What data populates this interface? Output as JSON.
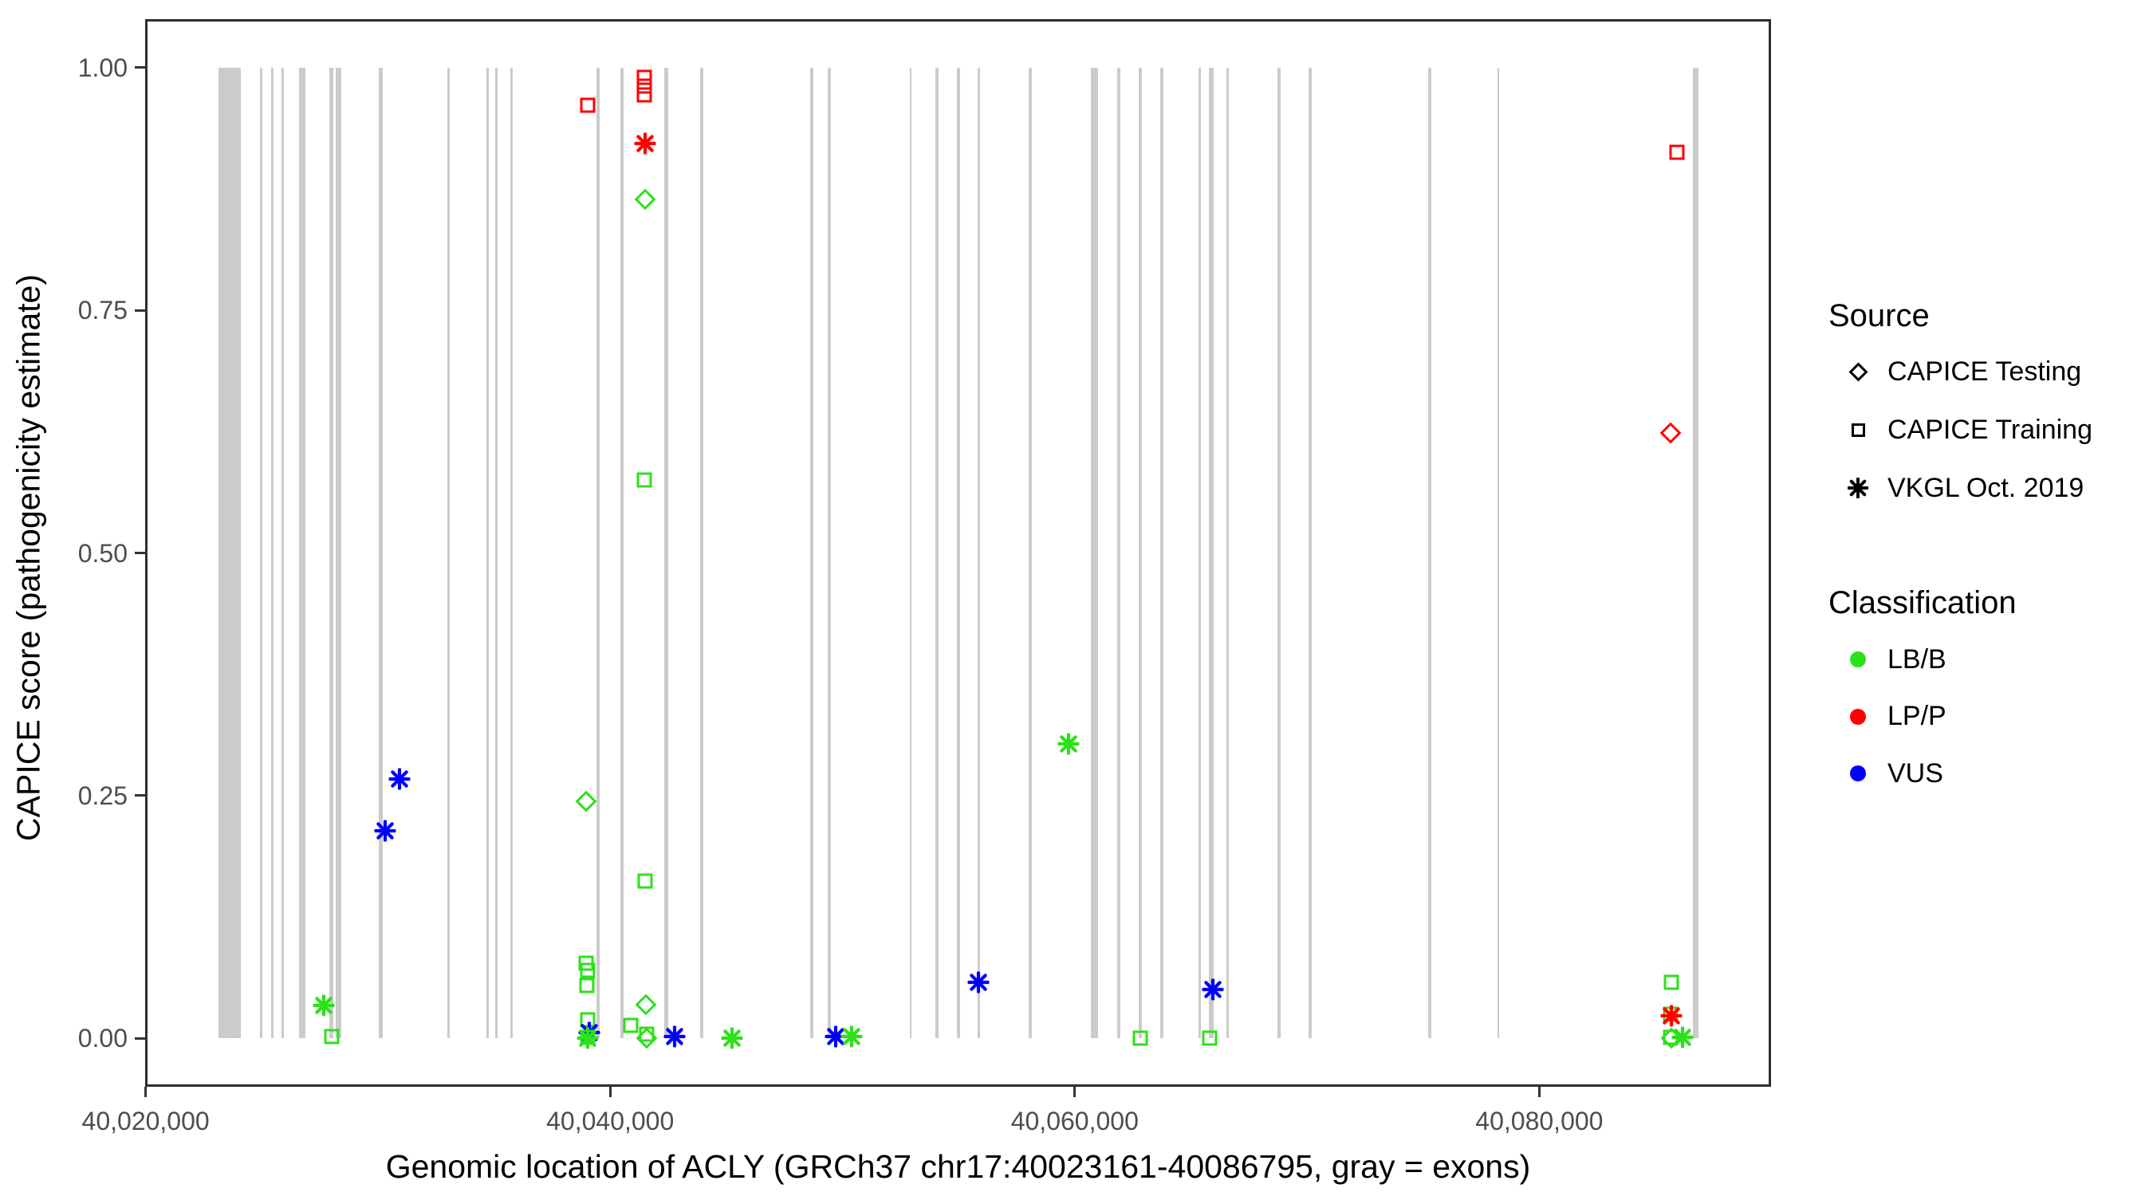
{
  "figure": {
    "x_axis": {
      "title": "Genomic location of ACLY (GRCh37 chr17:40023161-40086795, gray = exons)",
      "ticks": [
        {
          "value": 40020000,
          "label": "40,020,000"
        },
        {
          "value": 40040000,
          "label": "40,040,000"
        },
        {
          "value": 40060000,
          "label": "40,060,000"
        },
        {
          "value": 40080000,
          "label": "40,080,000"
        }
      ]
    },
    "y_axis": {
      "title": "CAPICE score (pathogenicity estimate)",
      "ticks": [
        {
          "value": 0.0,
          "label": "0.00"
        },
        {
          "value": 0.25,
          "label": "0.25"
        },
        {
          "value": 0.5,
          "label": "0.50"
        },
        {
          "value": 0.75,
          "label": "0.75"
        },
        {
          "value": 1.0,
          "label": "1.00"
        }
      ]
    },
    "legend": {
      "source": {
        "title": "Source",
        "items": [
          {
            "label": "CAPICE Testing",
            "marker": "diamond"
          },
          {
            "label": "CAPICE Training",
            "marker": "square"
          },
          {
            "label": "VKGL Oct. 2019",
            "marker": "asterisk"
          }
        ]
      },
      "classification": {
        "title": "Classification",
        "items": [
          {
            "label": "LB/B",
            "color": "#2CE118"
          },
          {
            "label": "LP/P",
            "color": "#FF0000"
          },
          {
            "label": "VUS",
            "color": "#0000FF"
          }
        ]
      }
    }
  },
  "chart_data": {
    "type": "scatter",
    "title": "",
    "xlabel": "Genomic location of ACLY (GRCh37 chr17:40023161-40086795, gray = exons)",
    "ylabel": "CAPICE score (pathogenicity estimate)",
    "x_range": [
      40019979,
      40089977
    ],
    "y_range": [
      -0.05,
      1.05
    ],
    "grid": false,
    "legend_position": "right",
    "exon_color": "#cbcbcb",
    "class_colors": {
      "LB/B": "#2CE118",
      "LP/P": "#FF0000",
      "VUS": "#0000FF"
    },
    "source_markers": {
      "CAPICE Testing": "diamond",
      "CAPICE Training": "square",
      "VKGL Oct. 2019": "asterisk"
    },
    "exons": [
      [
        40023140,
        40024100
      ],
      [
        40024920,
        40025030
      ],
      [
        40025400,
        40025510
      ],
      [
        40025850,
        40025950
      ],
      [
        40026610,
        40026880
      ],
      [
        40027910,
        40028080
      ],
      [
        40028190,
        40028430
      ],
      [
        40030040,
        40030210
      ],
      [
        40032990,
        40033090
      ],
      [
        40034670,
        40034780
      ],
      [
        40035050,
        40035150
      ],
      [
        40035700,
        40035810
      ],
      [
        40039410,
        40039550
      ],
      [
        40040440,
        40040580
      ],
      [
        40042330,
        40042500
      ],
      [
        40043870,
        40044010
      ],
      [
        40048610,
        40048750
      ],
      [
        40049370,
        40049500
      ],
      [
        40052900,
        40052970
      ],
      [
        40054000,
        40054140
      ],
      [
        40054930,
        40055060
      ],
      [
        40055820,
        40055920
      ],
      [
        40058020,
        40058150
      ],
      [
        40060690,
        40061000
      ],
      [
        40061830,
        40061960
      ],
      [
        40062750,
        40062890
      ],
      [
        40063680,
        40063820
      ],
      [
        40065330,
        40065430
      ],
      [
        40065780,
        40065980
      ],
      [
        40066530,
        40066600
      ],
      [
        40068730,
        40068870
      ],
      [
        40070070,
        40070200
      ],
      [
        40075220,
        40075350
      ],
      [
        40078200,
        40078270
      ],
      [
        40086620,
        40086860
      ]
    ],
    "points": [
      {
        "x": 40027670,
        "y": 0.034,
        "source": "VKGL Oct. 2019",
        "classification": "LB/B"
      },
      {
        "x": 40028000,
        "y": 0.002,
        "source": "CAPICE Training",
        "classification": "LB/B"
      },
      {
        "x": 40030310,
        "y": 0.214,
        "source": "VKGL Oct. 2019",
        "classification": "VUS"
      },
      {
        "x": 40030920,
        "y": 0.267,
        "source": "VKGL Oct. 2019",
        "classification": "VUS"
      },
      {
        "x": 40038960,
        "y": 0.244,
        "source": "CAPICE Testing",
        "classification": "LB/B"
      },
      {
        "x": 40039020,
        "y": 0.961,
        "source": "CAPICE Training",
        "classification": "LP/P"
      },
      {
        "x": 40038970,
        "y": 0.077,
        "source": "CAPICE Training",
        "classification": "LB/B"
      },
      {
        "x": 40039020,
        "y": 0.07,
        "source": "CAPICE Training",
        "classification": "LB/B"
      },
      {
        "x": 40039000,
        "y": 0.054,
        "source": "CAPICE Training",
        "classification": "LB/B"
      },
      {
        "x": 40039020,
        "y": 0.019,
        "source": "CAPICE Training",
        "classification": "LB/B"
      },
      {
        "x": 40039110,
        "y": 0.006,
        "source": "VKGL Oct. 2019",
        "classification": "VUS"
      },
      {
        "x": 40039020,
        "y": 0.001,
        "source": "CAPICE Training",
        "classification": "LB/B"
      },
      {
        "x": 40039020,
        "y": 0.0,
        "source": "VKGL Oct. 2019",
        "classification": "LB/B"
      },
      {
        "x": 40041480,
        "y": 0.99,
        "source": "CAPICE Training",
        "classification": "LP/P"
      },
      {
        "x": 40041480,
        "y": 0.981,
        "source": "CAPICE Training",
        "classification": "LP/P"
      },
      {
        "x": 40041460,
        "y": 0.972,
        "source": "CAPICE Training",
        "classification": "LP/P"
      },
      {
        "x": 40041500,
        "y": 0.922,
        "source": "VKGL Oct. 2019",
        "classification": "LP/P"
      },
      {
        "x": 40041500,
        "y": 0.864,
        "source": "CAPICE Testing",
        "classification": "LB/B"
      },
      {
        "x": 40041460,
        "y": 0.575,
        "source": "CAPICE Training",
        "classification": "LB/B"
      },
      {
        "x": 40041520,
        "y": 0.162,
        "source": "CAPICE Training",
        "classification": "LB/B"
      },
      {
        "x": 40040890,
        "y": 0.013,
        "source": "CAPICE Training",
        "classification": "LB/B"
      },
      {
        "x": 40041540,
        "y": 0.035,
        "source": "CAPICE Testing",
        "classification": "LB/B"
      },
      {
        "x": 40041570,
        "y": 0.004,
        "source": "CAPICE Training",
        "classification": "LB/B"
      },
      {
        "x": 40041560,
        "y": 0.0,
        "source": "CAPICE Testing",
        "classification": "LB/B"
      },
      {
        "x": 40042770,
        "y": 0.002,
        "source": "VKGL Oct. 2019",
        "classification": "VUS"
      },
      {
        "x": 40045260,
        "y": 0.0,
        "source": "VKGL Oct. 2019",
        "classification": "LB/B"
      },
      {
        "x": 40049700,
        "y": 0.002,
        "source": "VKGL Oct. 2019",
        "classification": "VUS"
      },
      {
        "x": 40050390,
        "y": 0.002,
        "source": "VKGL Oct. 2019",
        "classification": "LB/B"
      },
      {
        "x": 40055840,
        "y": 0.058,
        "source": "VKGL Oct. 2019",
        "classification": "VUS"
      },
      {
        "x": 40059730,
        "y": 0.303,
        "source": "VKGL Oct. 2019",
        "classification": "LB/B"
      },
      {
        "x": 40062830,
        "y": 0.0,
        "source": "CAPICE Training",
        "classification": "LB/B"
      },
      {
        "x": 40065800,
        "y": 0.0,
        "source": "CAPICE Training",
        "classification": "LB/B"
      },
      {
        "x": 40065940,
        "y": 0.05,
        "source": "VKGL Oct. 2019",
        "classification": "VUS"
      },
      {
        "x": 40085930,
        "y": 0.913,
        "source": "CAPICE Training",
        "classification": "LP/P"
      },
      {
        "x": 40085650,
        "y": 0.624,
        "source": "CAPICE Testing",
        "classification": "LP/P"
      },
      {
        "x": 40085700,
        "y": 0.058,
        "source": "CAPICE Training",
        "classification": "LB/B"
      },
      {
        "x": 40085660,
        "y": 0.025,
        "source": "CAPICE Training",
        "classification": "LB/B"
      },
      {
        "x": 40085700,
        "y": 0.023,
        "source": "VKGL Oct. 2019",
        "classification": "LP/P"
      },
      {
        "x": 40085660,
        "y": 0.001,
        "source": "CAPICE Training",
        "classification": "LB/B"
      },
      {
        "x": 40085680,
        "y": 0.0,
        "source": "CAPICE Testing",
        "classification": "LB/B"
      },
      {
        "x": 40086180,
        "y": 0.001,
        "source": "VKGL Oct. 2019",
        "classification": "LB/B"
      }
    ]
  }
}
